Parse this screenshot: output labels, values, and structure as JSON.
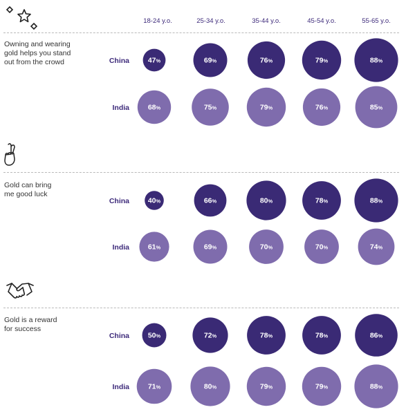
{
  "colors": {
    "china": "#3a2a75",
    "india": "#7f6cad",
    "text": "#333333",
    "row_label": "#3d2a7a"
  },
  "chart_data": {
    "type": "bubble-grid",
    "categories": [
      "18-24 y.o.",
      "25-34 y.o.",
      "35-44 y.o.",
      "45-54 y.o.",
      "55-65 y.o."
    ],
    "groups": [
      {
        "label": "Owning and wearing gold helps you stand out from the crowd",
        "label_lines": [
          "Owning and wearing",
          "gold helps you stand",
          "out from the crowd"
        ],
        "icon": "stars-icon",
        "series": [
          {
            "name": "China",
            "values": [
              47,
              69,
              76,
              79,
              88
            ]
          },
          {
            "name": "India",
            "values": [
              68,
              75,
              79,
              76,
              85
            ]
          }
        ]
      },
      {
        "label": "Gold can bring me good luck",
        "label_lines": [
          "Gold can bring",
          "me good luck"
        ],
        "icon": "crossed-fingers-icon",
        "series": [
          {
            "name": "China",
            "values": [
              40,
              66,
              80,
              78,
              88
            ]
          },
          {
            "name": "India",
            "values": [
              61,
              69,
              70,
              70,
              74
            ]
          }
        ]
      },
      {
        "label": "Gold is a reward for success",
        "label_lines": [
          "Gold is a reward",
          "for success"
        ],
        "icon": "handshake-icon",
        "series": [
          {
            "name": "China",
            "values": [
              50,
              72,
              78,
              78,
              86
            ]
          },
          {
            "name": "India",
            "values": [
              71,
              80,
              79,
              79,
              88
            ]
          }
        ]
      }
    ],
    "value_suffix": "%"
  }
}
